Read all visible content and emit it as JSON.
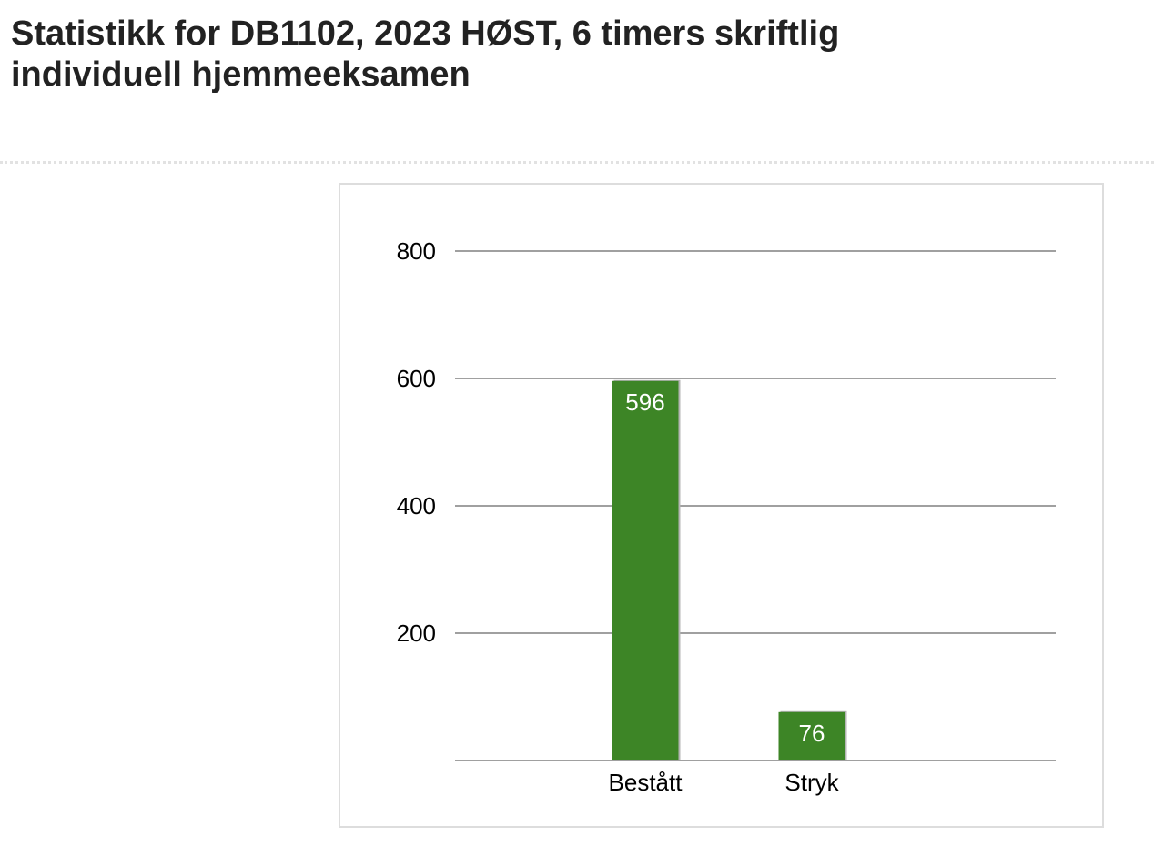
{
  "page": {
    "title": "Statistikk for DB1102, 2023 HØST, 6 timers skriftlig individuell hjemmeeksamen"
  },
  "colors": {
    "bar": "#3d8526",
    "bar_shadow": "#b5b5b5",
    "gridline": "#808080",
    "axis_text": "#000000",
    "data_label": "#ffffff",
    "title_text": "#222222"
  },
  "chart_data": {
    "type": "bar",
    "categories": [
      "Bestått",
      "Stryk"
    ],
    "values": [
      596,
      76
    ],
    "yticks": [
      200,
      400,
      600,
      800
    ],
    "ylim": [
      0,
      800
    ],
    "grid": true,
    "data_labels": true,
    "xlabel": "",
    "ylabel": ""
  }
}
